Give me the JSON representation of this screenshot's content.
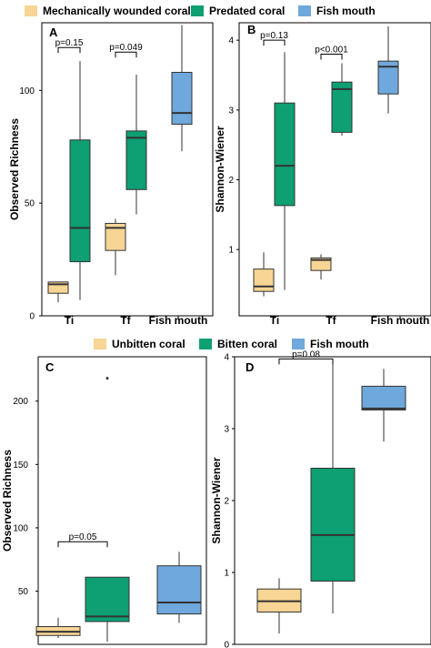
{
  "colors": {
    "tan": "#F7D594",
    "green": "#0E9F72",
    "blue": "#6FA8DC",
    "median": "#333333",
    "frame": "#000000"
  },
  "legends": [
    {
      "items": [
        {
          "label": "Mechanically wounded coral",
          "color": "#F7D594"
        },
        {
          "label": "Predated coral",
          "color": "#0E9F72"
        },
        {
          "label": "Fish mouth",
          "color": "#6FA8DC"
        }
      ]
    },
    {
      "items": [
        {
          "label": "Unbitten coral",
          "color": "#F7D594"
        },
        {
          "label": "Bitten coral",
          "color": "#0E9F72"
        },
        {
          "label": "Fish mouth",
          "color": "#6FA8DC"
        }
      ]
    }
  ],
  "chart_data": [
    {
      "type": "box",
      "panel": "A",
      "xlabel": "",
      "ylabel": "Observed Richness",
      "ylim": [
        0,
        130
      ],
      "yticks": [
        0,
        50,
        100
      ],
      "categories": [
        "Ti",
        "Tf",
        "Fish mouth"
      ],
      "boxes": [
        {
          "category": "Ti",
          "x": 0,
          "color": "#F7D594",
          "min": 6,
          "q1": 10,
          "median": 14,
          "q3": 15,
          "max": 15
        },
        {
          "category": "Ti",
          "x": 1,
          "color": "#0E9F72",
          "min": 7,
          "q1": 24,
          "median": 39,
          "q3": 78,
          "max": 113
        },
        {
          "category": "Tf",
          "x": 2,
          "color": "#F7D594",
          "min": 18,
          "q1": 29,
          "median": 39,
          "q3": 41,
          "max": 43
        },
        {
          "category": "Tf",
          "x": 3,
          "color": "#0E9F72",
          "min": 45,
          "q1": 56,
          "median": 79,
          "q3": 82,
          "max": 107
        },
        {
          "category": "Fish mouth",
          "x": 5,
          "color": "#6FA8DC",
          "min": 73,
          "q1": 85,
          "median": 90,
          "q3": 108,
          "max": 129
        }
      ],
      "annotations": [
        {
          "text": "p=0.15",
          "x1": 0,
          "x2": 1,
          "y": 119
        },
        {
          "text": "p=0.049",
          "x1": 2,
          "x2": 3,
          "y": 117
        }
      ]
    },
    {
      "type": "box",
      "panel": "B",
      "xlabel": "",
      "ylabel": "Shannon-Wiener",
      "ylim": [
        0.05,
        4.25
      ],
      "yticks": [
        1,
        2,
        3,
        4
      ],
      "categories": [
        "Ti",
        "Tf",
        "Fish mouth"
      ],
      "boxes": [
        {
          "category": "Ti",
          "x": 0,
          "color": "#F7D594",
          "min": 0.33,
          "q1": 0.4,
          "median": 0.47,
          "q3": 0.72,
          "max": 0.96
        },
        {
          "category": "Ti",
          "x": 1,
          "color": "#0E9F72",
          "min": 0.42,
          "q1": 1.63,
          "median": 2.2,
          "q3": 3.1,
          "max": 3.83
        },
        {
          "category": "Tf",
          "x": 2,
          "color": "#F7D594",
          "min": 0.57,
          "q1": 0.7,
          "median": 0.85,
          "q3": 0.88,
          "max": 0.93
        },
        {
          "category": "Tf",
          "x": 3,
          "color": "#0E9F72",
          "min": 2.63,
          "q1": 2.68,
          "median": 3.3,
          "q3": 3.4,
          "max": 3.67
        },
        {
          "category": "Fish mouth",
          "x": 5,
          "color": "#6FA8DC",
          "min": 2.95,
          "q1": 3.23,
          "median": 3.62,
          "q3": 3.7,
          "max": 4.2
        }
      ],
      "annotations": [
        {
          "text": "p=0.13",
          "x1": 0,
          "x2": 1,
          "y": 4.0
        },
        {
          "text": "p<0.001",
          "x1": 2,
          "x2": 3,
          "y": 3.8
        }
      ]
    },
    {
      "type": "box",
      "panel": "C",
      "xlabel": "",
      "ylabel": "Observed Richness",
      "ylim": [
        8,
        235
      ],
      "yticks": [
        50,
        100,
        150,
        200
      ],
      "categories": [],
      "boxes": [
        {
          "category": "",
          "x": 0,
          "color": "#F7D594",
          "min": 13,
          "q1": 15,
          "median": 18,
          "q3": 22,
          "max": 29,
          "outliers": []
        },
        {
          "category": "",
          "x": 1,
          "color": "#0E9F72",
          "min": 10,
          "q1": 26,
          "median": 30,
          "q3": 61,
          "max": 61,
          "outliers": [
            218
          ]
        },
        {
          "category": "",
          "x": 2,
          "color": "#6FA8DC",
          "min": 25,
          "q1": 32,
          "median": 41,
          "q3": 70,
          "max": 81,
          "outliers": []
        }
      ],
      "annotations": [
        {
          "text": "p=0.05",
          "x1": 0,
          "x2": 1,
          "y": 89
        }
      ]
    },
    {
      "type": "box",
      "panel": "D",
      "xlabel": "",
      "ylabel": "Shannon-Wiener",
      "ylim": [
        0,
        4.0
      ],
      "yticks": [
        0,
        1,
        2,
        3,
        4
      ],
      "categories": [],
      "boxes": [
        {
          "category": "",
          "x": 0,
          "color": "#F7D594",
          "min": 0.15,
          "q1": 0.45,
          "median": 0.6,
          "q3": 0.77,
          "max": 0.92
        },
        {
          "category": "",
          "x": 1,
          "color": "#0E9F72",
          "min": 0.43,
          "q1": 0.88,
          "median": 1.52,
          "q3": 2.45,
          "max": 3.9
        },
        {
          "category": "",
          "x": 2,
          "color": "#6FA8DC",
          "min": 2.82,
          "q1": 3.26,
          "median": 3.28,
          "q3": 3.59,
          "max": 3.83
        }
      ],
      "annotations": [
        {
          "text": "p=0.08",
          "x1": 0,
          "x2": 1,
          "y": 3.97
        }
      ]
    }
  ]
}
